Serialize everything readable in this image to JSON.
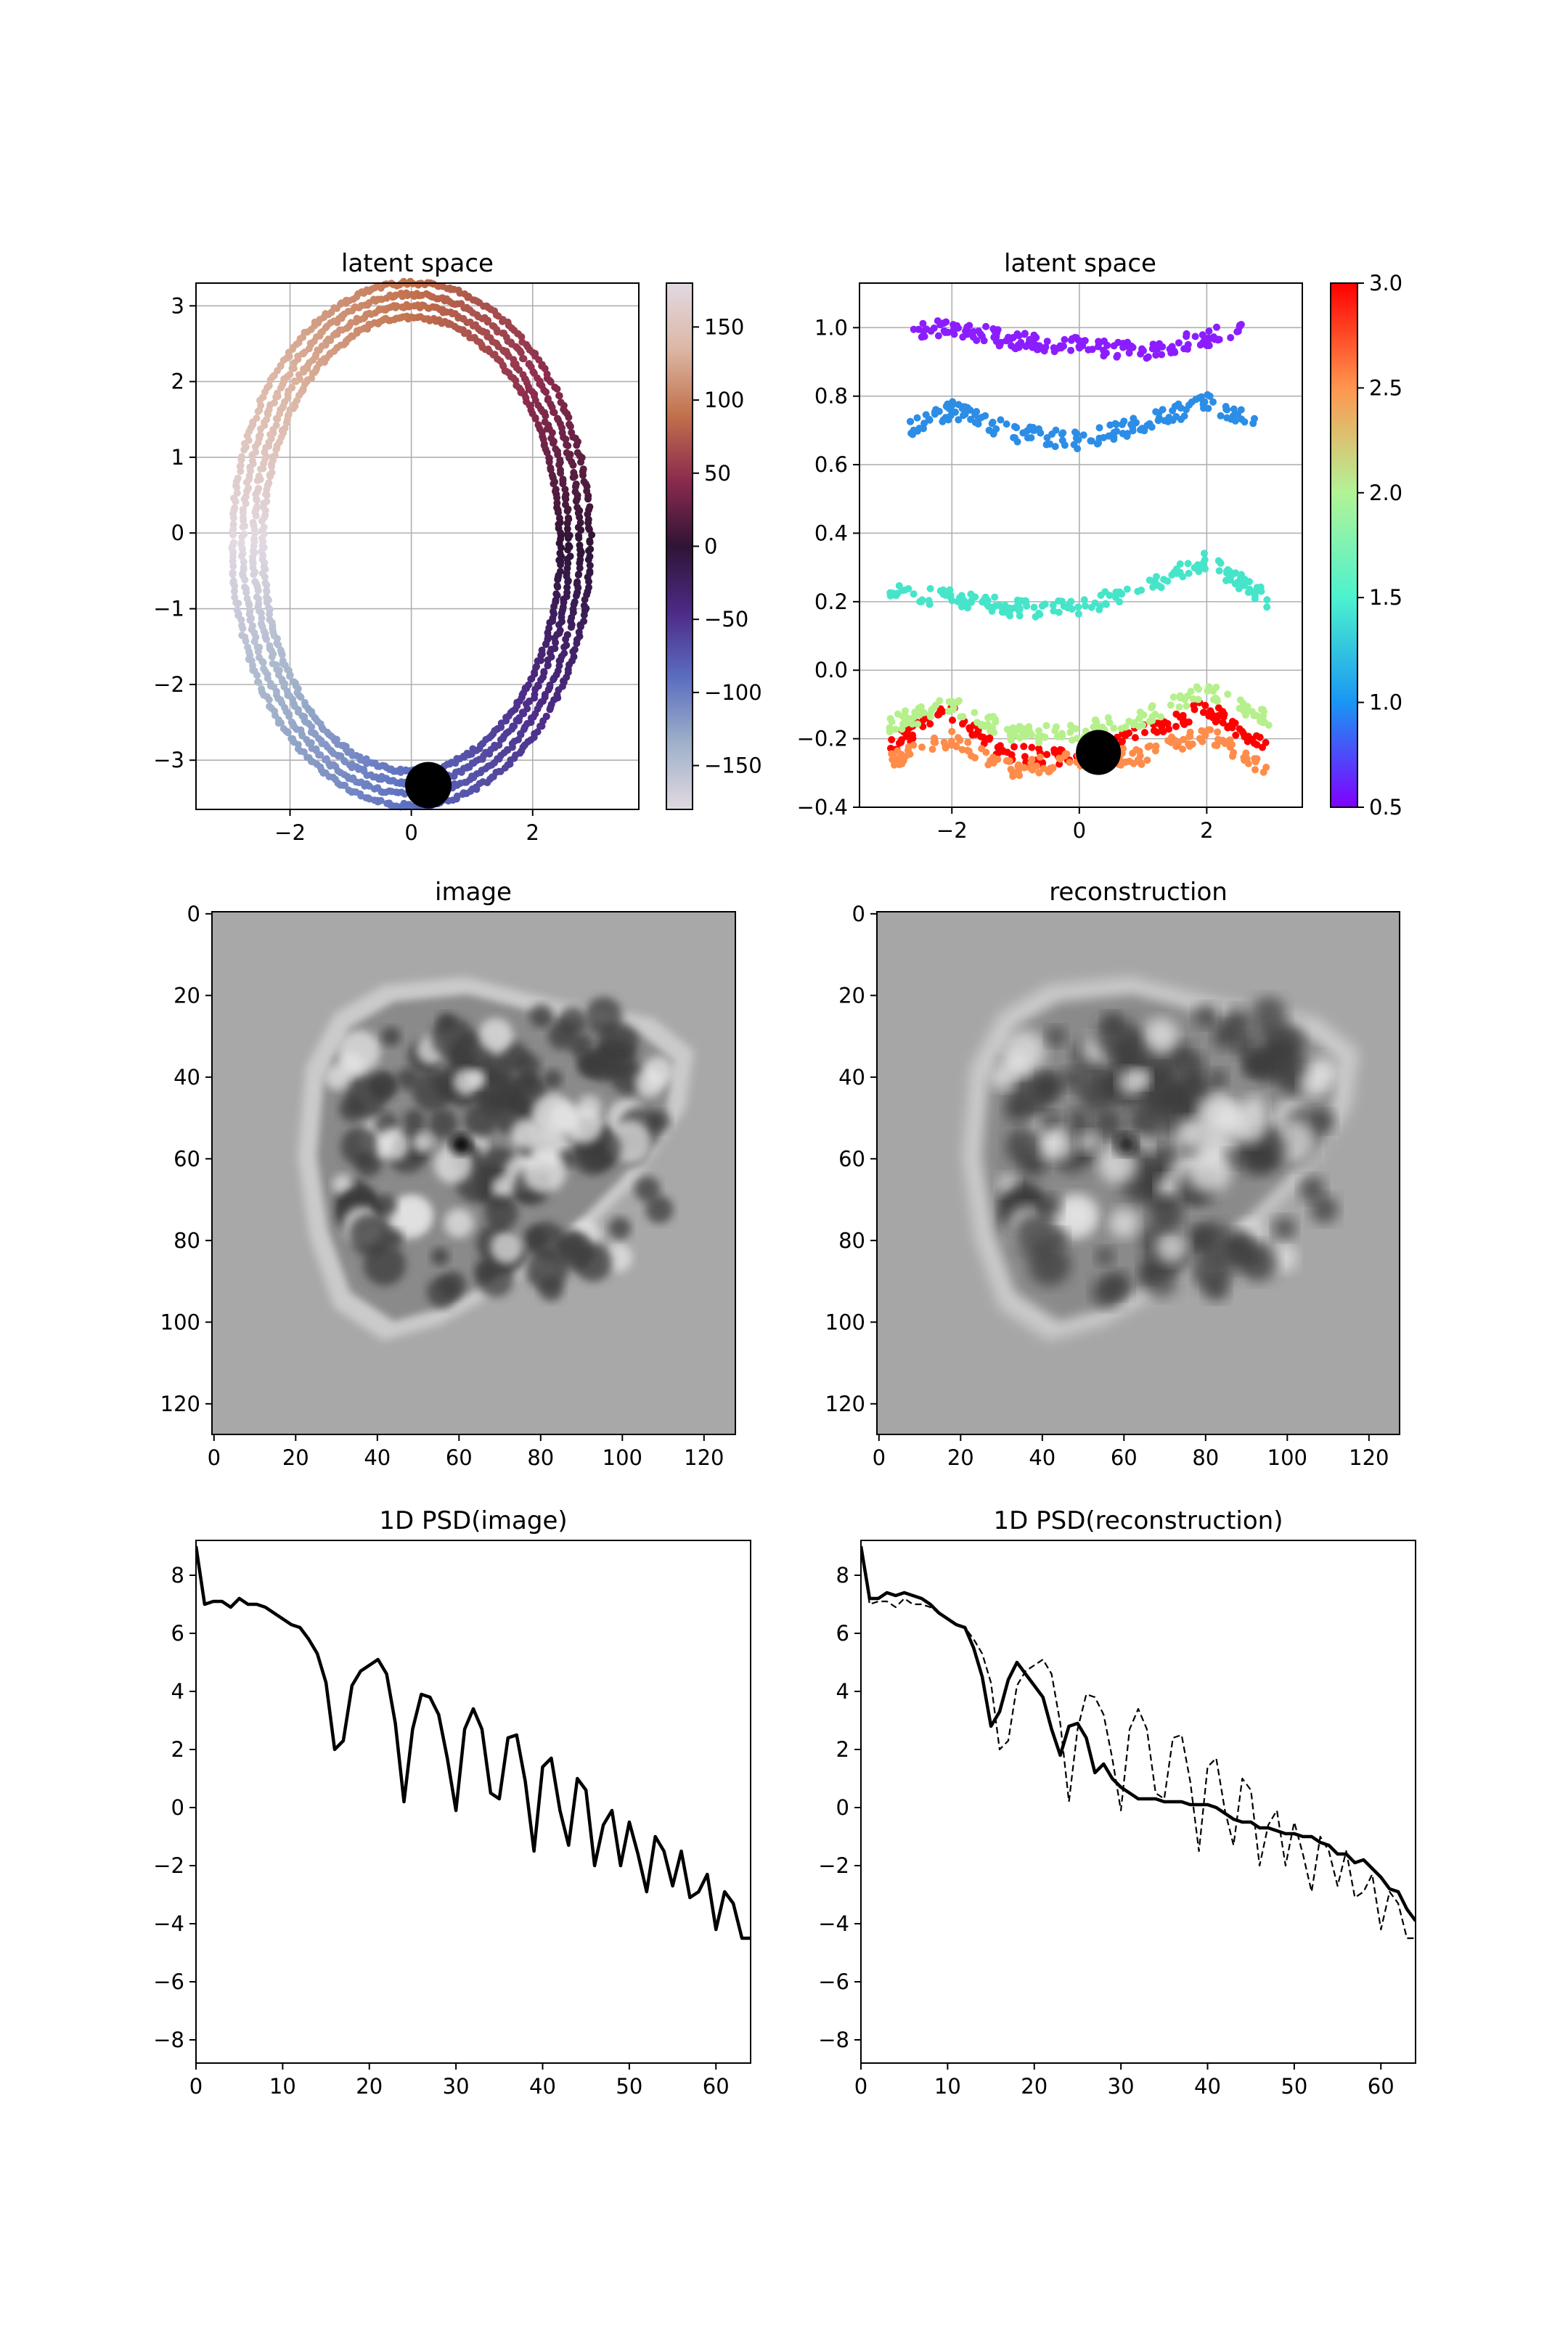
{
  "chart_data": [
    {
      "id": "latent-angle",
      "type": "scatter",
      "title": "latent space",
      "xlim": [
        -3.55,
        3.75
      ],
      "ylim": [
        -3.65,
        3.3
      ],
      "xticks": [
        -2,
        0,
        2
      ],
      "yticks": [
        -3,
        -2,
        -1,
        0,
        1,
        2,
        3
      ],
      "grid": true,
      "rings": [
        {
          "cx": 0.0,
          "cy": -0.15,
          "rx": 2.45,
          "ry": 3.0
        },
        {
          "cx": 0.0,
          "cy": -0.15,
          "rx": 2.6,
          "ry": 3.15
        },
        {
          "cx": 0.0,
          "cy": -0.15,
          "rx": 2.78,
          "ry": 3.3
        },
        {
          "cx": 0.0,
          "cy": -0.15,
          "rx": 2.95,
          "ry": 3.45
        }
      ],
      "marker": {
        "x": 0.28,
        "y": -3.33
      },
      "colorbar": {
        "range": [
          -180,
          180
        ],
        "ticks": [
          150,
          100,
          50,
          0,
          -50,
          -100,
          -150
        ],
        "colormap": "twilight",
        "stops": [
          "#e2d9e2",
          "#9fb1c9",
          "#5b6ec0",
          "#4d2a86",
          "#2f1436",
          "#8b2b4e",
          "#c2714c",
          "#dcb7a5",
          "#e2d9e2"
        ]
      }
    },
    {
      "id": "latent-scale",
      "type": "scatter",
      "title": "latent space",
      "xlim": [
        -3.45,
        3.5
      ],
      "ylim": [
        -0.4,
        1.13
      ],
      "xticks": [
        -2,
        0,
        2
      ],
      "yticks": [
        1.0,
        0.8,
        0.6,
        0.4,
        0.2,
        0.0,
        -0.2,
        -0.4
      ],
      "ytick_labels": [
        "1.0",
        "0.8",
        "0.6",
        "0.4",
        "0.2",
        "0.0",
        "−0.2",
        "−0.4"
      ],
      "grid": true,
      "bands": [
        {
          "level": 3.0,
          "color": "#ff0000",
          "profile": [
            [
              -3,
              -0.22
            ],
            [
              -2,
              -0.12
            ],
            [
              -1.2,
              -0.24
            ],
            [
              0,
              -0.26
            ],
            [
              1,
              -0.18
            ],
            [
              2,
              -0.11
            ],
            [
              3,
              -0.24
            ]
          ]
        },
        {
          "level": 2.5,
          "color": "#ff8c4a",
          "profile": [
            [
              -3,
              -0.27
            ],
            [
              -2,
              -0.2
            ],
            [
              -1,
              -0.29
            ],
            [
              0,
              -0.26
            ],
            [
              1,
              -0.25
            ],
            [
              2,
              -0.18
            ],
            [
              3,
              -0.3
            ]
          ]
        },
        {
          "level": 2.0,
          "color": "#b6f08c",
          "profile": [
            [
              -3,
              -0.16
            ],
            [
              -2,
              -0.1
            ],
            [
              -1,
              -0.19
            ],
            [
              0,
              -0.18
            ],
            [
              1,
              -0.14
            ],
            [
              2,
              -0.06
            ],
            [
              3,
              -0.14
            ]
          ]
        },
        {
          "level": 1.0,
          "color": "#46e5c9",
          "profile": [
            [
              -3,
              0.23
            ],
            [
              -2,
              0.21
            ],
            [
              -1,
              0.18
            ],
            [
              0,
              0.18
            ],
            [
              1,
              0.24
            ],
            [
              2,
              0.32
            ],
            [
              3,
              0.2
            ]
          ]
        },
        {
          "level": 0.75,
          "color": "#2c8de6",
          "profile": [
            [
              -2.7,
              0.7
            ],
            [
              -2,
              0.76
            ],
            [
              -1,
              0.69
            ],
            [
              0,
              0.67
            ],
            [
              1,
              0.72
            ],
            [
              2,
              0.78
            ],
            [
              2.8,
              0.73
            ]
          ]
        },
        {
          "level": 0.5,
          "color": "#8b1dff",
          "profile": [
            [
              -2.6,
              0.99
            ],
            [
              -2,
              1.0
            ],
            [
              -1,
              0.96
            ],
            [
              0,
              0.95
            ],
            [
              1,
              0.93
            ],
            [
              2,
              0.97
            ],
            [
              2.6,
              1.0
            ]
          ]
        }
      ],
      "marker": {
        "x": 0.3,
        "y": -0.24
      },
      "colorbar": {
        "range": [
          0.5,
          3.0
        ],
        "ticks": [
          3.0,
          2.5,
          2.0,
          1.5,
          1.0,
          0.5
        ],
        "tick_labels": [
          "3.0",
          "2.5",
          "2.0",
          "1.5",
          "1.0",
          "0.5"
        ],
        "colormap": "rainbow",
        "stops": [
          "#8000ff",
          "#1996f3",
          "#4cf2ce",
          "#b2f396",
          "#ff964f",
          "#ff0000"
        ]
      }
    },
    {
      "id": "image",
      "type": "heatmap",
      "title": "image",
      "extent": [
        0,
        128
      ],
      "xticks": [
        0,
        20,
        40,
        60,
        80,
        100,
        120
      ],
      "yticks": [
        0,
        20,
        40,
        60,
        80,
        100,
        120
      ],
      "background": "#a8a8a8"
    },
    {
      "id": "reconstruction",
      "type": "heatmap",
      "title": "reconstruction",
      "extent": [
        0,
        128
      ],
      "xticks": [
        0,
        20,
        40,
        60,
        80,
        100,
        120
      ],
      "yticks": [
        0,
        20,
        40,
        60,
        80,
        100,
        120
      ],
      "background": "#a6a6a6"
    },
    {
      "id": "psd-image",
      "type": "line",
      "title": "1D PSD(image)",
      "xlim": [
        0,
        64
      ],
      "ylim": [
        -8.8,
        9.2
      ],
      "xticks": [
        0,
        10,
        20,
        30,
        40,
        50,
        60
      ],
      "yticks": [
        8,
        6,
        4,
        2,
        0,
        -2,
        -4,
        -6,
        -8
      ],
      "series": [
        {
          "style": "solid",
          "x": [
            0,
            1,
            2,
            3,
            4,
            5,
            6,
            7,
            8,
            9,
            10,
            11,
            12,
            13,
            14,
            15,
            16,
            17,
            18,
            19,
            20,
            21,
            22,
            23,
            24,
            25,
            26,
            27,
            28,
            29,
            30,
            31,
            32,
            33,
            34,
            35,
            36,
            37,
            38,
            39,
            40,
            41,
            42,
            43,
            44,
            45,
            46,
            47,
            48,
            49,
            50,
            51,
            52,
            53,
            54,
            55,
            56,
            57,
            58,
            59,
            60,
            61,
            62,
            63,
            64
          ],
          "values": [
            9.0,
            7.0,
            7.1,
            7.1,
            6.9,
            7.2,
            7.0,
            7.0,
            6.9,
            6.7,
            6.5,
            6.3,
            6.2,
            5.8,
            5.3,
            4.3,
            2.0,
            2.3,
            4.2,
            4.7,
            4.9,
            5.1,
            4.6,
            2.9,
            0.2,
            2.7,
            3.9,
            3.8,
            3.2,
            1.7,
            -0.1,
            2.7,
            3.4,
            2.7,
            0.5,
            0.3,
            2.4,
            2.5,
            0.9,
            -1.5,
            1.4,
            1.7,
            -0.1,
            -1.3,
            1.0,
            0.6,
            -2.0,
            -0.6,
            -0.1,
            -2.0,
            -0.5,
            -1.6,
            -2.9,
            -1.0,
            -1.5,
            -2.7,
            -1.5,
            -3.1,
            -2.9,
            -2.3,
            -4.2,
            -2.9,
            -3.3,
            -4.5,
            -4.5
          ]
        }
      ]
    },
    {
      "id": "psd-reconstruction",
      "type": "line",
      "title": "1D PSD(reconstruction)",
      "xlim": [
        0,
        64
      ],
      "ylim": [
        -8.8,
        9.2
      ],
      "xticks": [
        0,
        10,
        20,
        30,
        40,
        50,
        60
      ],
      "yticks": [
        8,
        6,
        4,
        2,
        0,
        -2,
        -4,
        -6,
        -8
      ],
      "series": [
        {
          "style": "solid",
          "x": [
            0,
            1,
            2,
            3,
            4,
            5,
            6,
            7,
            8,
            9,
            10,
            11,
            12,
            13,
            14,
            15,
            16,
            17,
            18,
            19,
            20,
            21,
            22,
            23,
            24,
            25,
            26,
            27,
            28,
            29,
            30,
            31,
            32,
            33,
            34,
            35,
            36,
            37,
            38,
            39,
            40,
            41,
            42,
            43,
            44,
            45,
            46,
            47,
            48,
            49,
            50,
            51,
            52,
            53,
            54,
            55,
            56,
            57,
            58,
            59,
            60,
            61,
            62,
            63,
            64
          ],
          "values": [
            9.0,
            7.2,
            7.2,
            7.4,
            7.3,
            7.4,
            7.3,
            7.2,
            7.0,
            6.7,
            6.5,
            6.3,
            6.2,
            5.5,
            4.5,
            2.8,
            3.3,
            4.4,
            5.0,
            4.6,
            4.2,
            3.8,
            2.7,
            1.8,
            2.8,
            2.9,
            2.4,
            1.2,
            1.5,
            1.0,
            0.7,
            0.5,
            0.3,
            0.3,
            0.3,
            0.2,
            0.2,
            0.2,
            0.1,
            0.1,
            0.1,
            0.0,
            -0.2,
            -0.4,
            -0.5,
            -0.5,
            -0.7,
            -0.7,
            -0.8,
            -0.9,
            -0.9,
            -1.0,
            -1.0,
            -1.2,
            -1.3,
            -1.6,
            -1.6,
            -1.9,
            -1.8,
            -2.1,
            -2.4,
            -2.8,
            -2.9,
            -3.5,
            -3.9
          ]
        },
        {
          "style": "dashed",
          "x": [
            0,
            1,
            2,
            3,
            4,
            5,
            6,
            7,
            8,
            9,
            10,
            11,
            12,
            13,
            14,
            15,
            16,
            17,
            18,
            19,
            20,
            21,
            22,
            23,
            24,
            25,
            26,
            27,
            28,
            29,
            30,
            31,
            32,
            33,
            34,
            35,
            36,
            37,
            38,
            39,
            40,
            41,
            42,
            43,
            44,
            45,
            46,
            47,
            48,
            49,
            50,
            51,
            52,
            53,
            54,
            55,
            56,
            57,
            58,
            59,
            60,
            61,
            62,
            63,
            64
          ],
          "values": [
            9.0,
            7.0,
            7.1,
            7.1,
            6.9,
            7.2,
            7.0,
            7.0,
            6.9,
            6.7,
            6.5,
            6.3,
            6.2,
            5.8,
            5.3,
            4.3,
            2.0,
            2.3,
            4.2,
            4.7,
            4.9,
            5.1,
            4.6,
            2.9,
            0.2,
            2.7,
            3.9,
            3.8,
            3.2,
            1.7,
            -0.1,
            2.7,
            3.4,
            2.7,
            0.5,
            0.3,
            2.4,
            2.5,
            0.9,
            -1.5,
            1.4,
            1.7,
            -0.1,
            -1.3,
            1.0,
            0.6,
            -2.0,
            -0.6,
            -0.1,
            -2.0,
            -0.5,
            -1.6,
            -2.9,
            -1.0,
            -1.5,
            -2.7,
            -1.5,
            -3.1,
            -2.9,
            -2.3,
            -4.2,
            -2.9,
            -3.3,
            -4.5,
            -4.5
          ]
        }
      ]
    }
  ]
}
